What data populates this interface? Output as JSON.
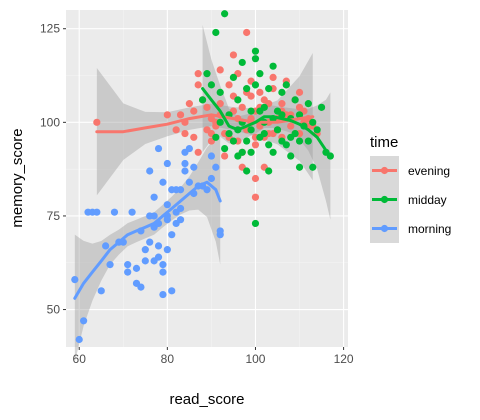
{
  "chart_data": {
    "type": "scatter",
    "xlabel": "read_score",
    "ylabel": "memory_score",
    "xlim": [
      57,
      121
    ],
    "ylim": [
      40,
      130
    ],
    "x_ticks": [
      60,
      80,
      100,
      120
    ],
    "y_ticks": [
      50,
      75,
      100,
      125
    ],
    "grid": true,
    "legend": {
      "title": "time",
      "position": "right"
    },
    "series": [
      {
        "name": "evening",
        "color": "#F8766D",
        "points": [
          [
            64,
            100
          ],
          [
            82,
            98
          ],
          [
            83,
            102
          ],
          [
            84,
            100
          ],
          [
            85,
            105
          ],
          [
            86,
            103
          ],
          [
            87,
            113
          ],
          [
            87,
            110
          ],
          [
            88,
            106
          ],
          [
            89,
            104
          ],
          [
            90,
            101
          ],
          [
            90,
            97
          ],
          [
            91,
            99
          ],
          [
            92,
            102
          ],
          [
            93,
            97
          ],
          [
            94,
            96
          ],
          [
            94,
            110
          ],
          [
            95,
            107
          ],
          [
            95,
            103
          ],
          [
            96,
            101
          ],
          [
            96,
            95
          ],
          [
            97,
            92
          ],
          [
            97,
            104
          ],
          [
            98,
            108
          ],
          [
            98,
            98
          ],
          [
            99,
            111
          ],
          [
            99,
            100
          ],
          [
            100,
            94
          ],
          [
            100,
            85
          ],
          [
            100,
            80
          ],
          [
            101,
            108
          ],
          [
            101,
            99
          ],
          [
            102,
            96
          ],
          [
            102,
            88
          ],
          [
            103,
            105
          ],
          [
            103,
            100
          ],
          [
            104,
            97
          ],
          [
            104,
            109
          ],
          [
            105,
            101
          ],
          [
            106,
            96
          ],
          [
            106,
            105
          ],
          [
            107,
            111
          ],
          [
            107,
            102
          ],
          [
            108,
            99
          ],
          [
            109,
            97
          ],
          [
            110,
            104
          ],
          [
            110,
            108
          ],
          [
            111,
            100
          ],
          [
            112,
            101
          ],
          [
            113,
            99
          ],
          [
            114,
            97
          ],
          [
            92,
            105
          ],
          [
            93,
            91
          ],
          [
            95,
            95
          ],
          [
            97,
            88
          ],
          [
            86,
            96
          ],
          [
            84,
            97
          ],
          [
            80,
            102
          ],
          [
            87,
            92
          ],
          [
            89,
            98
          ],
          [
            90,
            95
          ],
          [
            91,
            100
          ],
          [
            92,
            114
          ],
          [
            95,
            118
          ],
          [
            96,
            113
          ],
          [
            98,
            124
          ],
          [
            99,
            101
          ],
          [
            100,
            103
          ],
          [
            101,
            100
          ],
          [
            102,
            106
          ],
          [
            103,
            97
          ],
          [
            104,
            112
          ],
          [
            105,
            98
          ],
          [
            106,
            103
          ],
          [
            107,
            110
          ],
          [
            108,
            102
          ],
          [
            109,
            106
          ],
          [
            110,
            97
          ],
          [
            111,
            103
          ],
          [
            112,
            99
          ],
          [
            100,
            96
          ],
          [
            99,
            107
          ],
          [
            101,
            104
          ]
        ],
        "trend": [
          [
            64,
            97.5
          ],
          [
            70,
            97.5
          ],
          [
            75,
            98.5
          ],
          [
            80,
            99.5
          ],
          [
            85,
            101
          ],
          [
            90,
            102
          ],
          [
            95,
            101
          ],
          [
            100,
            100
          ],
          [
            105,
            100
          ],
          [
            110,
            101
          ],
          [
            113,
            101.5
          ]
        ]
      },
      {
        "name": "midday",
        "color": "#00BA38",
        "points": [
          [
            88,
            106
          ],
          [
            89,
            113
          ],
          [
            90,
            110
          ],
          [
            91,
            124
          ],
          [
            92,
            108
          ],
          [
            93,
            129
          ],
          [
            94,
            102
          ],
          [
            95,
            112
          ],
          [
            96,
            98
          ],
          [
            96,
            106
          ],
          [
            97,
            100
          ],
          [
            97,
            116
          ],
          [
            98,
            95
          ],
          [
            98,
            109
          ],
          [
            99,
            103
          ],
          [
            99,
            92
          ],
          [
            100,
            119
          ],
          [
            100,
            73
          ],
          [
            100,
            117
          ],
          [
            101,
            113
          ],
          [
            101,
            96
          ],
          [
            102,
            104
          ],
          [
            102,
            100
          ],
          [
            103,
            109
          ],
          [
            103,
            87
          ],
          [
            104,
            115
          ],
          [
            104,
            92
          ],
          [
            105,
            103
          ],
          [
            105,
            98
          ],
          [
            106,
            108
          ],
          [
            106,
            95
          ],
          [
            107,
            110
          ],
          [
            108,
            101
          ],
          [
            108,
            91
          ],
          [
            109,
            106
          ],
          [
            109,
            97
          ],
          [
            110,
            102
          ],
          [
            110,
            88
          ],
          [
            111,
            99
          ],
          [
            112,
            105
          ],
          [
            112,
            95
          ],
          [
            113,
            100
          ],
          [
            113,
            88
          ],
          [
            114,
            98
          ],
          [
            115,
            104
          ],
          [
            116,
            92
          ],
          [
            117,
            91
          ],
          [
            91,
            96
          ],
          [
            92,
            100
          ],
          [
            93,
            93
          ],
          [
            94,
            97
          ],
          [
            95,
            95
          ],
          [
            96,
            91
          ],
          [
            98,
            87
          ],
          [
            97,
            92
          ],
          [
            99,
            98
          ],
          [
            100,
            110
          ],
          [
            101,
            103
          ],
          [
            102,
            97
          ],
          [
            103,
            94
          ],
          [
            104,
            101
          ],
          [
            106,
            102
          ],
          [
            107,
            94
          ],
          [
            108,
            96
          ],
          [
            110,
            95
          ]
        ],
        "trend": [
          [
            88,
            109
          ],
          [
            90,
            106
          ],
          [
            92,
            103
          ],
          [
            94,
            99
          ],
          [
            96,
            98
          ],
          [
            98,
            99
          ],
          [
            100,
            100
          ],
          [
            102,
            101.5
          ],
          [
            104,
            101.5
          ],
          [
            106,
            101
          ],
          [
            108,
            100.5
          ],
          [
            110,
            99.5
          ],
          [
            112,
            98
          ],
          [
            114,
            96
          ],
          [
            116,
            92.5
          ],
          [
            117,
            91
          ]
        ]
      },
      {
        "name": "morning",
        "color": "#619CFF",
        "points": [
          [
            59,
            58
          ],
          [
            60,
            42
          ],
          [
            61,
            47
          ],
          [
            62,
            76
          ],
          [
            63,
            76
          ],
          [
            64,
            76
          ],
          [
            65,
            55
          ],
          [
            66,
            67
          ],
          [
            67,
            62
          ],
          [
            68,
            76
          ],
          [
            69,
            68
          ],
          [
            70,
            68
          ],
          [
            71,
            62
          ],
          [
            72,
            76
          ],
          [
            73,
            61
          ],
          [
            74,
            71
          ],
          [
            75,
            66
          ],
          [
            75,
            63
          ],
          [
            76,
            75
          ],
          [
            76,
            68
          ],
          [
            77,
            75
          ],
          [
            77,
            72
          ],
          [
            77,
            63
          ],
          [
            78,
            64
          ],
          [
            78,
            73
          ],
          [
            79,
            60
          ],
          [
            79,
            54
          ],
          [
            80,
            74
          ],
          [
            80,
            78
          ],
          [
            80,
            89
          ],
          [
            81,
            70
          ],
          [
            81,
            55
          ],
          [
            82,
            73
          ],
          [
            82,
            76
          ],
          [
            83,
            77
          ],
          [
            83,
            82
          ],
          [
            84,
            89
          ],
          [
            84,
            87
          ],
          [
            85,
            84
          ],
          [
            85,
            93
          ],
          [
            86,
            81
          ],
          [
            86,
            88
          ],
          [
            87,
            83
          ],
          [
            88,
            83
          ],
          [
            89,
            82
          ],
          [
            90,
            85
          ],
          [
            90,
            91
          ],
          [
            91,
            88
          ],
          [
            92,
            70
          ],
          [
            92,
            71
          ],
          [
            76,
            87
          ],
          [
            78,
            93
          ],
          [
            79,
            84
          ],
          [
            80,
            75
          ],
          [
            81,
            82
          ],
          [
            82,
            82
          ],
          [
            83,
            74
          ],
          [
            84,
            92
          ],
          [
            77,
            80
          ],
          [
            78,
            67
          ],
          [
            79,
            62
          ],
          [
            80,
            66
          ],
          [
            71,
            60
          ],
          [
            73,
            57
          ],
          [
            74,
            56
          ]
        ],
        "trend": [
          [
            59,
            53
          ],
          [
            61,
            57
          ],
          [
            63,
            60
          ],
          [
            65,
            63
          ],
          [
            67,
            66
          ],
          [
            69,
            68
          ],
          [
            71,
            70
          ],
          [
            73,
            71
          ],
          [
            75,
            72
          ],
          [
            77,
            73
          ],
          [
            79,
            75
          ],
          [
            81,
            77
          ],
          [
            83,
            79
          ],
          [
            85,
            81
          ],
          [
            87,
            83
          ],
          [
            89,
            84
          ],
          [
            91,
            82
          ],
          [
            92,
            79
          ]
        ]
      }
    ]
  }
}
